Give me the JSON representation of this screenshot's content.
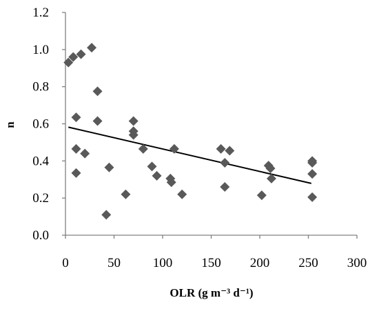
{
  "chart_data": {
    "type": "scatter",
    "title": "",
    "xlabel": "OLR (g m⁻³ d⁻¹)",
    "ylabel": "n",
    "xlim": [
      0,
      300
    ],
    "ylim": [
      0,
      1.2
    ],
    "xticks": [
      0,
      50,
      100,
      150,
      200,
      250,
      300
    ],
    "xtick_labels": [
      "0",
      "50",
      "100",
      "150",
      "200",
      "250",
      "300"
    ],
    "yticks": [
      0,
      0.2,
      0.4,
      0.6,
      0.8,
      1.0,
      1.2
    ],
    "ytick_labels": [
      "0.0",
      "0.2",
      "0.4",
      "0.6",
      "0.8",
      "1.0",
      "1.2"
    ],
    "grid": false,
    "legend": "none",
    "marker": "diamond",
    "marker_color": "#595959",
    "trendline_color": "#000000",
    "trendline": {
      "x": [
        3,
        253
      ],
      "y": [
        0.582,
        0.279
      ]
    },
    "points": [
      {
        "x": 3,
        "y": 0.93
      },
      {
        "x": 8,
        "y": 0.96
      },
      {
        "x": 16,
        "y": 0.975
      },
      {
        "x": 27,
        "y": 1.01
      },
      {
        "x": 33,
        "y": 0.775
      },
      {
        "x": 33,
        "y": 0.615
      },
      {
        "x": 11,
        "y": 0.635
      },
      {
        "x": 11,
        "y": 0.465
      },
      {
        "x": 11,
        "y": 0.335
      },
      {
        "x": 20,
        "y": 0.44
      },
      {
        "x": 45,
        "y": 0.365
      },
      {
        "x": 42,
        "y": 0.11
      },
      {
        "x": 62,
        "y": 0.22
      },
      {
        "x": 70,
        "y": 0.615
      },
      {
        "x": 70,
        "y": 0.56
      },
      {
        "x": 70,
        "y": 0.54
      },
      {
        "x": 80,
        "y": 0.465
      },
      {
        "x": 89,
        "y": 0.37
      },
      {
        "x": 94,
        "y": 0.32
      },
      {
        "x": 108,
        "y": 0.305
      },
      {
        "x": 109,
        "y": 0.285
      },
      {
        "x": 112,
        "y": 0.465
      },
      {
        "x": 120,
        "y": 0.22
      },
      {
        "x": 160,
        "y": 0.465
      },
      {
        "x": 164,
        "y": 0.39
      },
      {
        "x": 164,
        "y": 0.26
      },
      {
        "x": 169,
        "y": 0.455
      },
      {
        "x": 202,
        "y": 0.215
      },
      {
        "x": 209,
        "y": 0.375
      },
      {
        "x": 211,
        "y": 0.36
      },
      {
        "x": 212,
        "y": 0.305
      },
      {
        "x": 254,
        "y": 0.4
      },
      {
        "x": 254,
        "y": 0.39
      },
      {
        "x": 254,
        "y": 0.33
      },
      {
        "x": 254,
        "y": 0.205
      }
    ]
  }
}
